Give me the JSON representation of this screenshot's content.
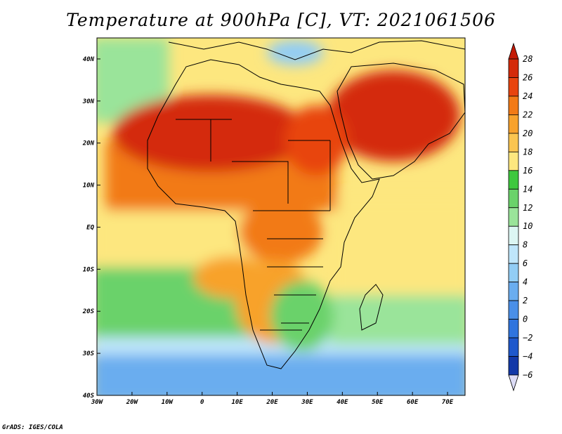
{
  "title": "Temperature at 900hPa [C], VT: 2021061506",
  "credit": "GrADS: IGES/COLA",
  "map": {
    "lon_range": [
      -30,
      75
    ],
    "lat_range": [
      -40,
      45
    ],
    "lon_ticks": [
      {
        "lon": -30,
        "label": "30W"
      },
      {
        "lon": -20,
        "label": "20W"
      },
      {
        "lon": -10,
        "label": "10W"
      },
      {
        "lon": 0,
        "label": "0"
      },
      {
        "lon": 10,
        "label": "10E"
      },
      {
        "lon": 20,
        "label": "20E"
      },
      {
        "lon": 30,
        "label": "30E"
      },
      {
        "lon": 40,
        "label": "40E"
      },
      {
        "lon": 50,
        "label": "50E"
      },
      {
        "lon": 60,
        "label": "60E"
      },
      {
        "lon": 70,
        "label": "70E"
      }
    ],
    "lat_ticks": [
      {
        "lat": 40,
        "label": "40N"
      },
      {
        "lat": 30,
        "label": "30N"
      },
      {
        "lat": 20,
        "label": "20N"
      },
      {
        "lat": 10,
        "label": "10N"
      },
      {
        "lat": 0,
        "label": "EQ"
      },
      {
        "lat": -10,
        "label": "10S"
      },
      {
        "lat": -20,
        "label": "20S"
      },
      {
        "lat": -30,
        "label": "30S"
      },
      {
        "lat": -40,
        "label": "40S"
      }
    ]
  },
  "colorbar": {
    "levels": [
      {
        "value": "28",
        "color": "#d42a0a"
      },
      {
        "value": "26",
        "color": "#e8440e"
      },
      {
        "value": "24",
        "color": "#f27a16"
      },
      {
        "value": "22",
        "color": "#f8a22c"
      },
      {
        "value": "20",
        "color": "#fbc550"
      },
      {
        "value": "18",
        "color": "#fde77f"
      },
      {
        "value": "16",
        "color": "#3ec83e"
      },
      {
        "value": "14",
        "color": "#6ad26a"
      },
      {
        "value": "12",
        "color": "#9ae49a"
      },
      {
        "value": "10",
        "color": "#dcf6f3"
      },
      {
        "value": "8",
        "color": "#bfe6fb"
      },
      {
        "value": "6",
        "color": "#92cdf5"
      },
      {
        "value": "4",
        "color": "#6aadef"
      },
      {
        "value": "2",
        "color": "#4a8fe8"
      },
      {
        "value": "0",
        "color": "#2f74de"
      },
      {
        "value": "−2",
        "color": "#1e58cc"
      },
      {
        "value": "−4",
        "color": "#1238a8"
      },
      {
        "value": "−6",
        "color": "#0c1a78"
      }
    ],
    "top_color": "#c41a06",
    "bottom_color": "#dcdcf6"
  },
  "field_colors": {
    "ocean_cool_south": "#6aadef",
    "ocean_mild_south": "#bfe6fb",
    "ocean_green": "#6ad26a",
    "ocean_lightgreen": "#9ae49a",
    "ocean_yellow": "#fde77f",
    "warm_orange": "#f8a22c",
    "hot_orange": "#f27a16",
    "hot_red": "#d42a0a",
    "red_orange": "#e8440e",
    "veld_green": "#6ad26a",
    "med_blue": "#92cdf5",
    "coast_line": "#000000"
  }
}
